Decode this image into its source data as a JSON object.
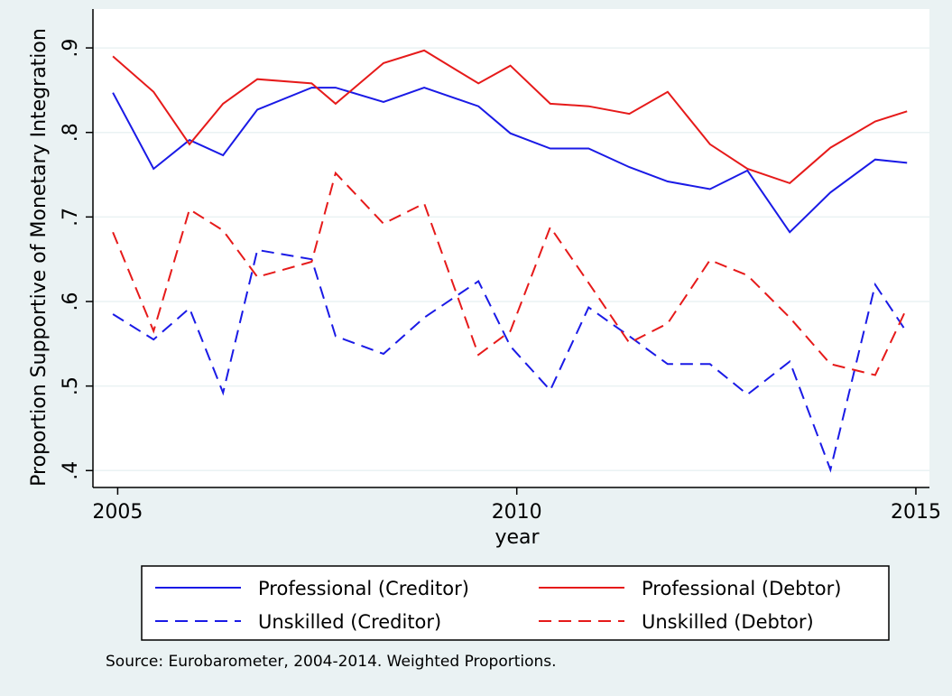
{
  "chart_data": {
    "type": "line",
    "x_label": "year",
    "y_label": "Proportion Supportive of Monetary Integration",
    "note": "Source: Eurobarometer, 2004-2014. Weighted Proportions.",
    "x": [
      2004.94,
      2005.45,
      2005.9,
      2006.32,
      2006.75,
      2007.43,
      2007.73,
      2008.33,
      2008.84,
      2009.52,
      2009.92,
      2010.42,
      2010.9,
      2011.41,
      2011.89,
      2012.42,
      2012.89,
      2013.42,
      2013.93,
      2014.49,
      2014.89
    ],
    "series": [
      {
        "name": "Professional (Creditor)",
        "color": "#1a1ae6",
        "style": "solid",
        "values": [
          0.847,
          0.757,
          0.791,
          0.773,
          0.827,
          0.853,
          0.853,
          0.836,
          0.853,
          0.831,
          0.799,
          0.781,
          0.781,
          0.759,
          0.742,
          0.733,
          0.755,
          0.682,
          0.729,
          0.768,
          0.764
        ]
      },
      {
        "name": "Professional (Debtor)",
        "color": "#e61a1a",
        "style": "solid",
        "values": [
          0.89,
          0.848,
          0.786,
          0.834,
          0.863,
          0.858,
          0.834,
          0.882,
          0.897,
          0.858,
          0.879,
          0.834,
          0.831,
          0.822,
          0.848,
          0.786,
          0.757,
          0.74,
          0.782,
          0.813,
          0.825
        ]
      },
      {
        "name": "Unskilled (Creditor)",
        "color": "#1a1ae6",
        "style": "dashed",
        "values": [
          0.585,
          0.555,
          0.592,
          0.492,
          0.661,
          0.65,
          0.559,
          0.538,
          0.581,
          0.624,
          0.547,
          0.495,
          0.593,
          0.559,
          0.526,
          0.526,
          0.49,
          0.529,
          0.401,
          0.62,
          0.563
        ]
      },
      {
        "name": "Unskilled (Debtor)",
        "color": "#e61a1a",
        "style": "dashed",
        "values": [
          0.682,
          0.565,
          0.709,
          0.684,
          0.629,
          0.647,
          0.752,
          0.692,
          0.716,
          0.537,
          0.565,
          0.688,
          0.622,
          0.551,
          0.574,
          0.649,
          0.631,
          0.581,
          0.526,
          0.513,
          0.593
        ]
      }
    ],
    "xlim": [
      2004.69,
      2015.17
    ],
    "ylim": [
      0.38,
      0.946
    ],
    "xticks": [
      2005,
      2010,
      2015
    ],
    "yticks": [
      {
        "value": 0.4,
        "label": ".4"
      },
      {
        "value": 0.5,
        "label": ".5"
      },
      {
        "value": 0.6,
        "label": ".6"
      },
      {
        "value": 0.7,
        "label": ".7"
      },
      {
        "value": 0.8,
        "label": ".8"
      },
      {
        "value": 0.9,
        "label": ".9"
      }
    ],
    "grid": true
  }
}
